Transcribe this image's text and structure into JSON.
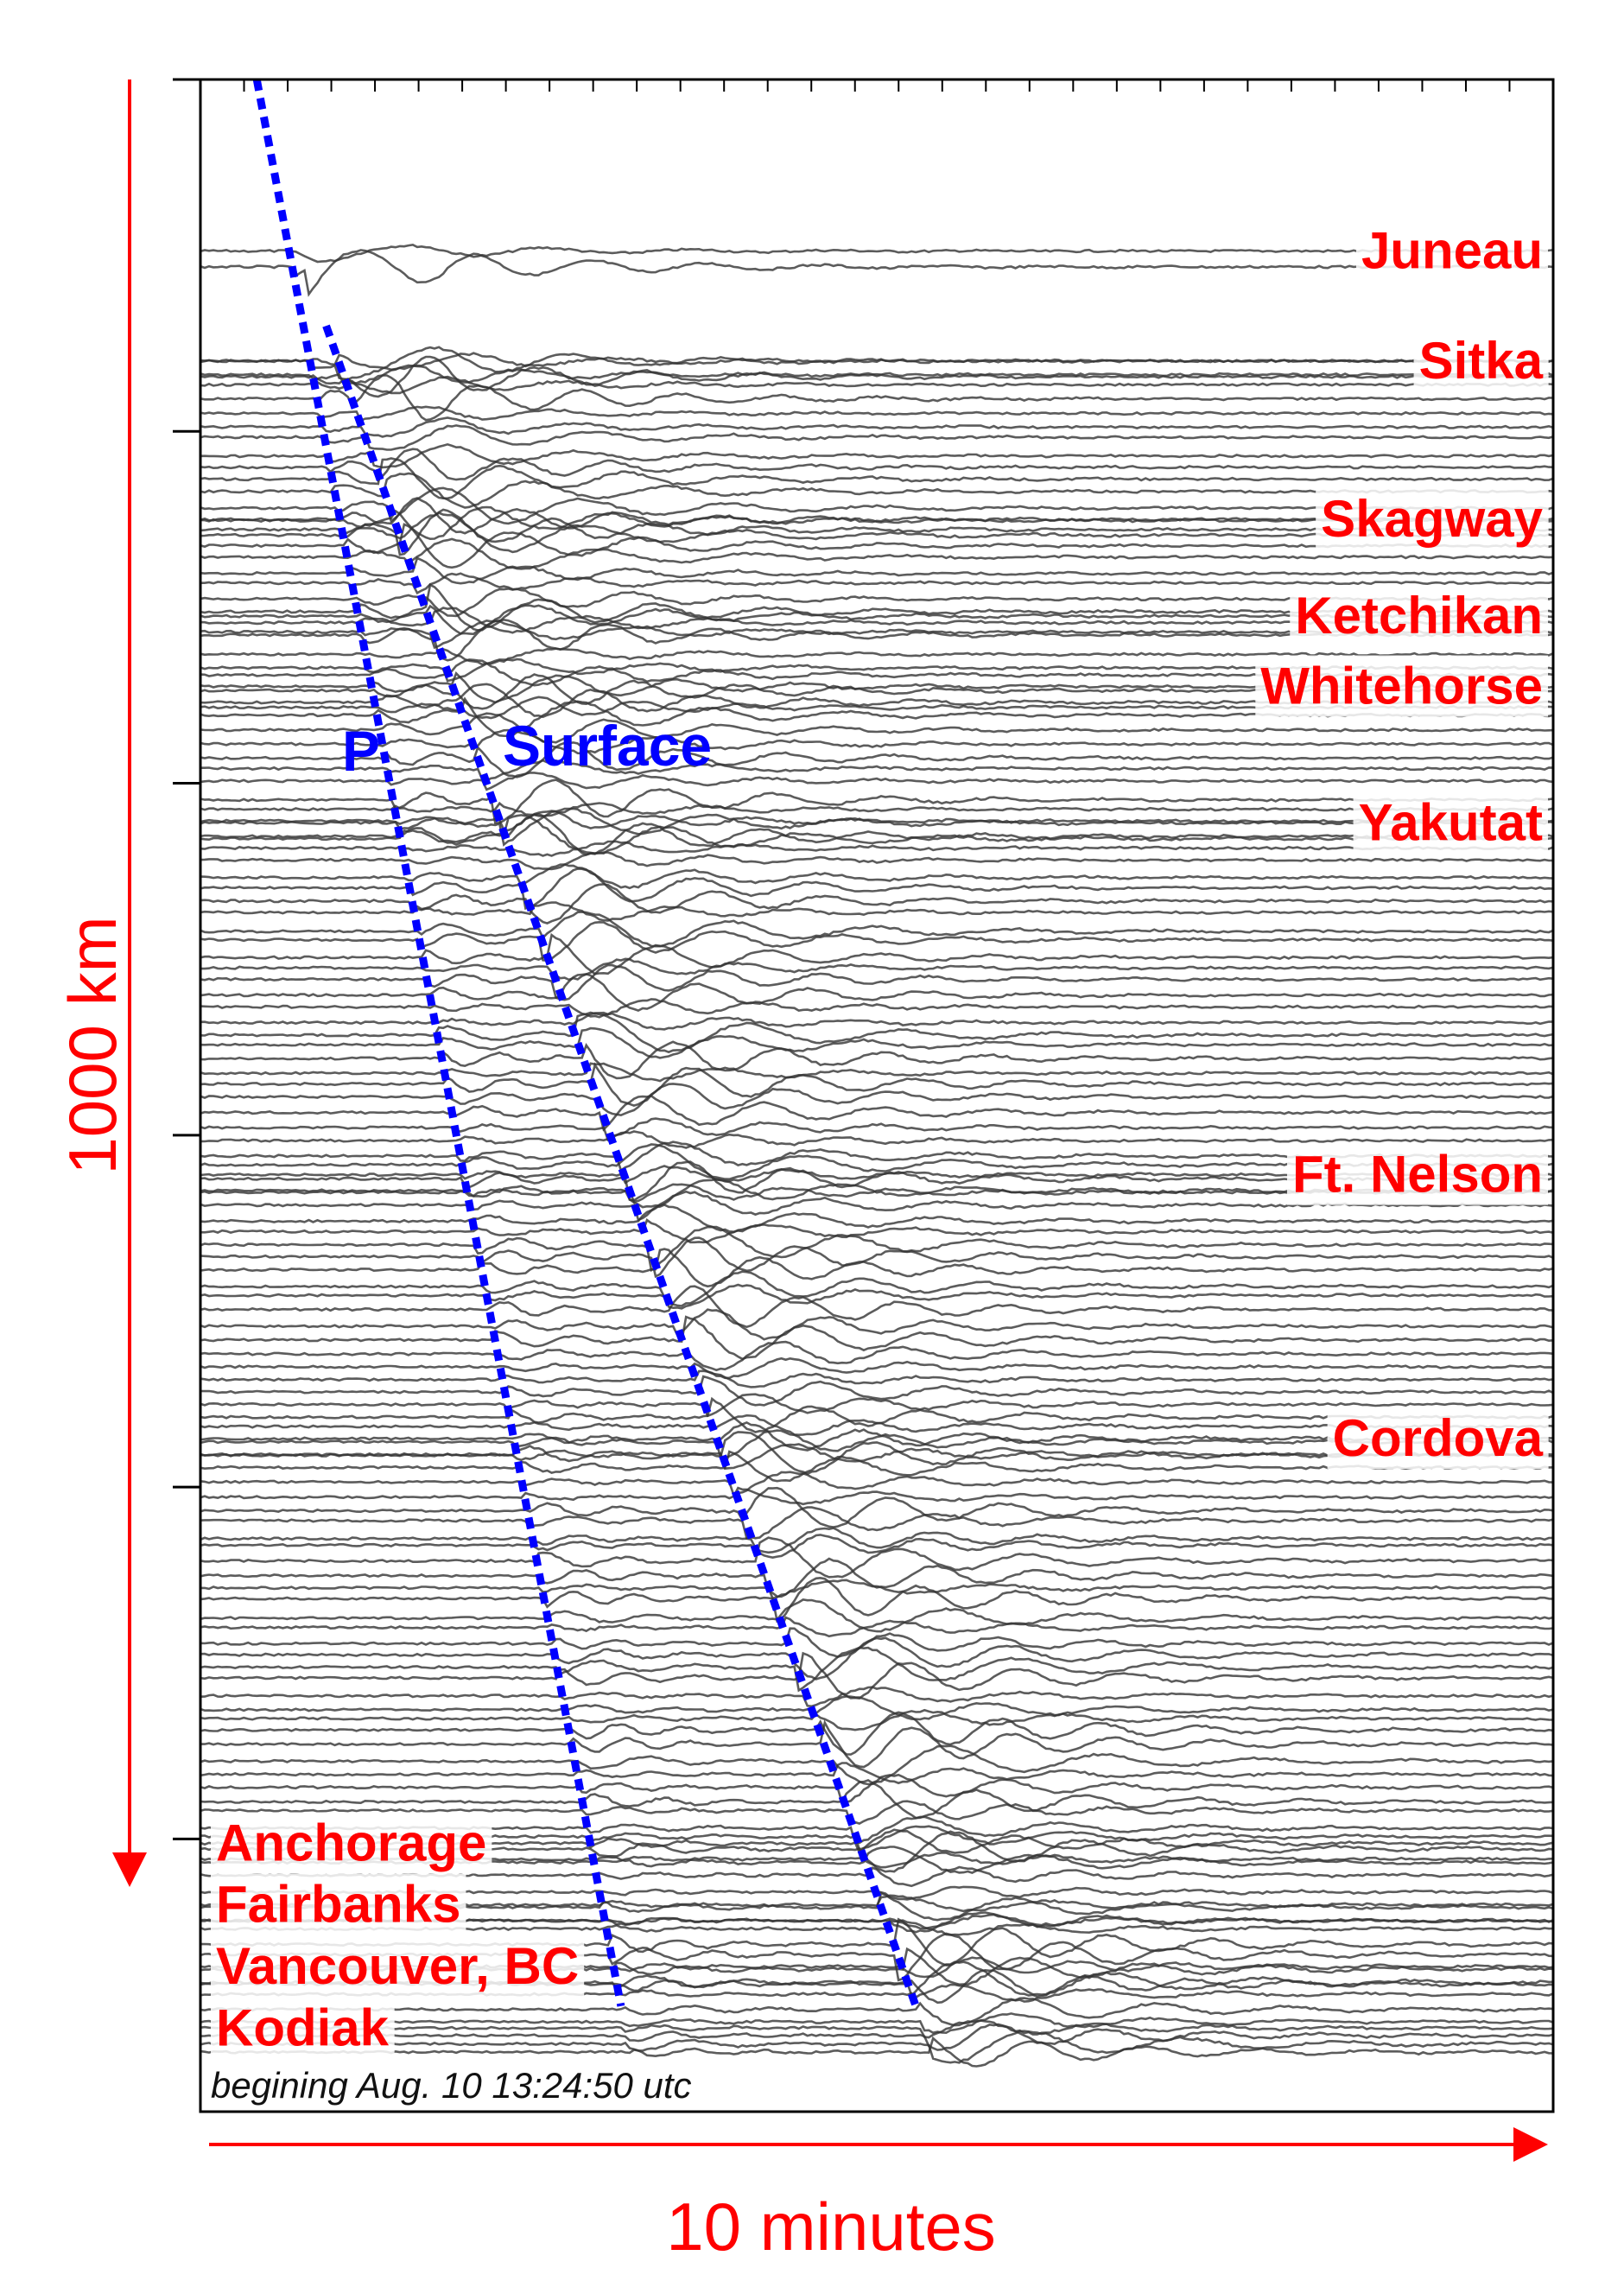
{
  "chart_data": {
    "type": "line",
    "title": "",
    "subtitle": "begining Aug. 10 13:24:50 utc",
    "xlabel": "10 minutes",
    "ylabel": "1000 km",
    "x_unit": "minutes",
    "y_unit": "km",
    "xlim": [
      0,
      15.6
    ],
    "ylim": [
      0,
      2310
    ],
    "y_inverted": true,
    "grid": false,
    "x_minor_ticks": 31,
    "y_major_ticks": [
      0,
      400,
      800,
      1200,
      1600,
      2000
    ],
    "phases": [
      {
        "name": "P",
        "x": [
          0.65,
          4.85
        ],
        "y": [
          0,
          2190
        ],
        "color": "#0000ff"
      },
      {
        "name": "Surface",
        "x": [
          1.45,
          8.25
        ],
        "y": [
          280,
          2190
        ],
        "color": "#0000ff"
      }
    ],
    "stations": [
      {
        "name": "Juneau",
        "distance_km": 195
      },
      {
        "name": "Sitka",
        "distance_km": 320
      },
      {
        "name": "Skagway",
        "distance_km": 500
      },
      {
        "name": "Ketchikan",
        "distance_km": 610
      },
      {
        "name": "Whitehorse",
        "distance_km": 690
      },
      {
        "name": "Yakutat",
        "distance_km": 845
      },
      {
        "name": "Ft. Nelson",
        "distance_km": 1245
      },
      {
        "name": "Cordova",
        "distance_km": 1545
      },
      {
        "name": "Anchorage",
        "distance_km": 2005
      },
      {
        "name": "Fairbanks",
        "distance_km": 2075
      },
      {
        "name": "Vancouver, BC",
        "distance_km": 2145
      },
      {
        "name": "Kodiak",
        "distance_km": 2215
      }
    ],
    "trace_color": "#333333",
    "axis_annotation_color": "#ff0000"
  }
}
